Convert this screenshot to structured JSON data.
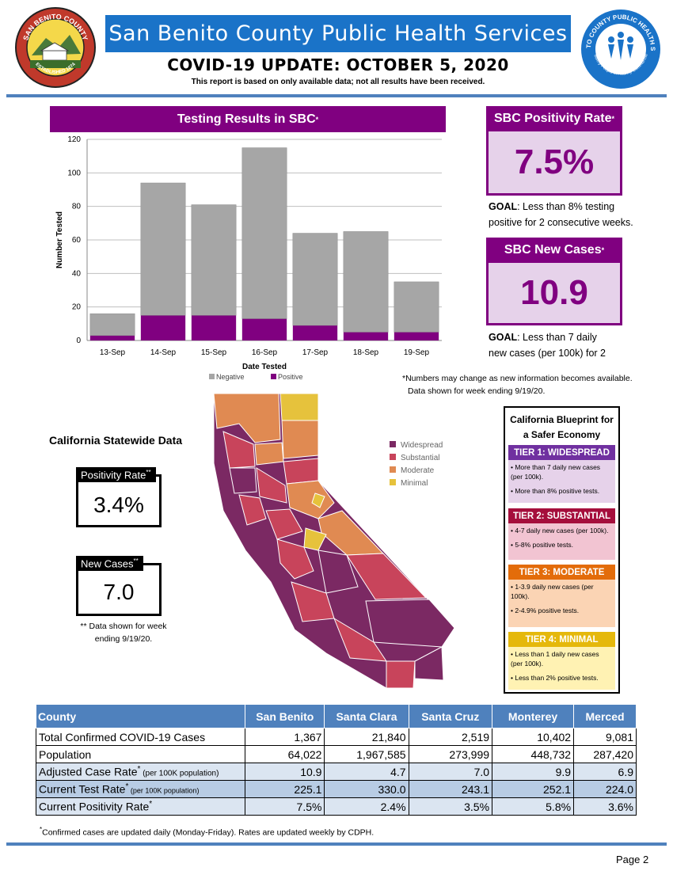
{
  "header": {
    "seal_left_text": "SAN BENITO COUNTY",
    "seal_left_sub": "ESTABLISHED 1874",
    "seal_right_text": "SAN BENITO COUNTY PUBLIC HEALTH SERVICES",
    "seal_right_sub": "Healthy People in Healthy Communities",
    "title": "San Benito County Public Health Services",
    "subtitle": "COVID-19 UPDATE: OCTOBER 5, 2020",
    "note": "This report is based on only available data; not all results have been received."
  },
  "testing": {
    "title": "Testing Results in SBC",
    "title_mark": "*"
  },
  "chart_data": {
    "type": "bar",
    "stacked": true,
    "categories": [
      "13-Sep",
      "14-Sep",
      "15-Sep",
      "16-Sep",
      "17-Sep",
      "18-Sep",
      "19-Sep"
    ],
    "series": [
      {
        "name": "Negative",
        "values": [
          13,
          79,
          66,
          102,
          55,
          60,
          30
        ],
        "color": "#a6a6a6"
      },
      {
        "name": "Positive",
        "values": [
          3,
          15,
          15,
          13,
          9,
          5,
          5
        ],
        "color": "#800080"
      }
    ],
    "xlabel": "Date Tested",
    "ylabel": "Number Tested",
    "ylim": [
      0,
      120
    ],
    "yticks": [
      0,
      20,
      40,
      60,
      80,
      100,
      120
    ],
    "grid": true,
    "legend": "bottom"
  },
  "positivity": {
    "title": "SBC Positivity Rate",
    "mark": "*",
    "value": "7.5%",
    "goal_label": "GOAL",
    "goal_text_1": ": Less than 8% testing",
    "goal_text_2": "positive for 2 consecutive weeks."
  },
  "new_cases": {
    "title": "SBC New Cases",
    "mark": "*",
    "value": "10.9",
    "goal_label": "GOAL",
    "goal_text_1": ": Less than 7 daily",
    "goal_text_2": "new cases (per 100k) for 2"
  },
  "numbers_note_1": "*Numbers may change as new information becomes available.",
  "numbers_note_2": "Data shown for week ending  9/19/20.",
  "statewide": {
    "title": "California Statewide Data",
    "positivity_label": "Positivity Rate",
    "positivity_mark": "**",
    "positivity_value": "3.4%",
    "cases_label": "New Cases",
    "cases_mark": "**",
    "cases_value": "7.0",
    "note_1": "** Data shown for week",
    "note_2": "ending  9/19/20."
  },
  "map": {
    "legend": [
      {
        "label": "Widespread",
        "color": "#7b2963"
      },
      {
        "label": "Substantial",
        "color": "#c8445b"
      },
      {
        "label": "Moderate",
        "color": "#e08a52"
      },
      {
        "label": "Minimal",
        "color": "#e6c23c"
      }
    ]
  },
  "blueprint": {
    "title_1": "California Blueprint for",
    "title_2": "a Safer Economy",
    "tiers": [
      {
        "name": "TIER 1: WIDESPREAD",
        "color": "#7030a0",
        "bg": "#e6d2ea",
        "bullets": [
          "• More than 7 daily new cases (per 100k).",
          "• More than 8% positive tests."
        ]
      },
      {
        "name": "TIER 2: SUBSTANTIAL",
        "color": "#a50e3c",
        "bg": "#f2c4d2",
        "bullets": [
          "• 4-7 daily new cases (per 100k).",
          "• 5-8% positive tests."
        ]
      },
      {
        "name": "TIER 3: MODERATE",
        "color": "#e36c0a",
        "bg": "#fbd4b4",
        "bullets": [
          "• 1-3.9 daily new cases (per 100k).",
          "• 2-4.9% positive tests."
        ]
      },
      {
        "name": "TIER 4: MINIMAL",
        "color": "#e5b80b",
        "bg": "#fff2b3",
        "bullets": [
          "• Less than 1 daily new cases (per 100k).",
          "• Less than 2% positive tests."
        ]
      }
    ]
  },
  "table": {
    "headers": [
      "County",
      "San Benito",
      "Santa Clara",
      "Santa Cruz",
      "Monterey",
      "Merced"
    ],
    "rows": [
      {
        "label": "Total Confirmed COVID-19 Cases",
        "sup": "",
        "small": "",
        "values": [
          "1,367",
          "21,840",
          "2,519",
          "10,402",
          "9,081"
        ]
      },
      {
        "label": "Population",
        "sup": "",
        "small": "",
        "values": [
          "64,022",
          "1,967,585",
          "273,999",
          "448,732",
          "287,420"
        ]
      },
      {
        "label": "Adjusted Case Rate",
        "sup": "*",
        "small": " (per 100K population)",
        "values": [
          "10.9",
          "4.7",
          "7.0",
          "9.9",
          "6.9"
        ]
      },
      {
        "label": "Current Test Rate",
        "sup": "*",
        "small": " (per 100K population)",
        "values": [
          "225.1",
          "330.0",
          "243.1",
          "252.1",
          "224.0"
        ]
      },
      {
        "label": "Current Positivity Rate",
        "sup": "*",
        "small": "",
        "values": [
          "7.5%",
          "2.4%",
          "3.5%",
          "5.8%",
          "3.6%"
        ]
      }
    ],
    "note_mark": "*",
    "note": "Confirmed cases are updated daily (Monday-Friday). Rates are updated weekly by CDPH."
  },
  "page": "Page 2"
}
